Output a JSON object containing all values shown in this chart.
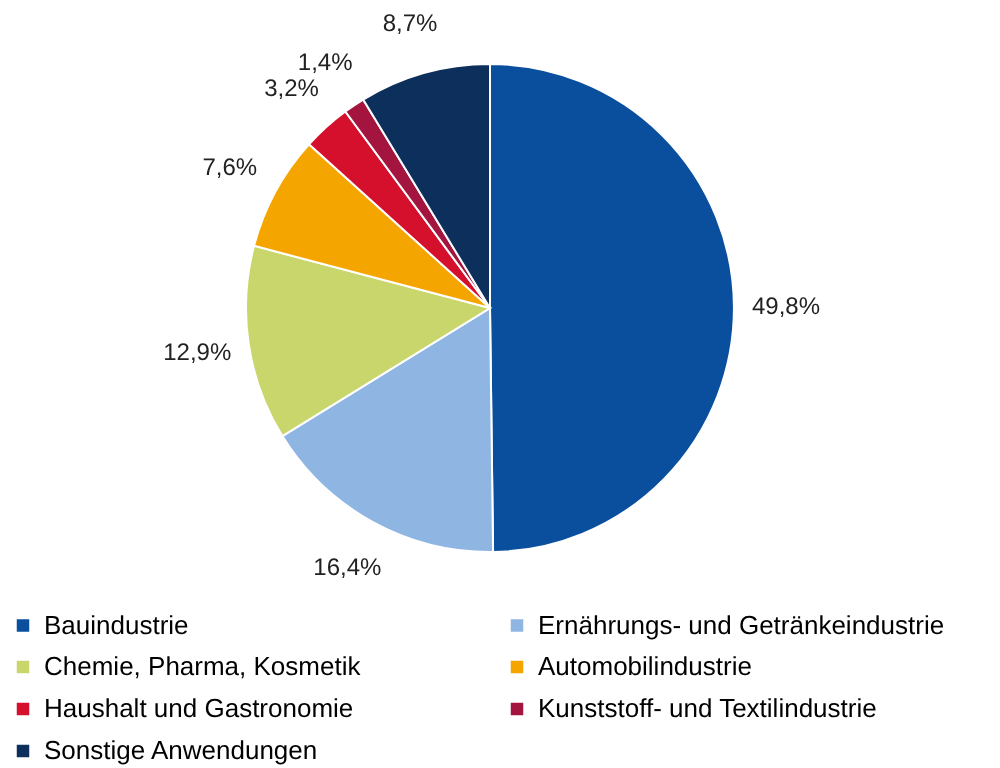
{
  "chart_data": {
    "type": "pie",
    "categories": [
      "Bauindustrie",
      "Ernährungs- und Getränkeindustrie",
      "Chemie, Pharma, Kosmetik",
      "Automobilindustrie",
      "Haushalt und Gastronomie",
      "Kunststoff- und Textilindustrie",
      "Sonstige Anwendungen"
    ],
    "values": [
      49.8,
      16.4,
      12.9,
      7.6,
      3.2,
      1.4,
      8.7
    ],
    "colors": [
      "#0a4f9e",
      "#8fb6e3",
      "#c8d66b",
      "#f5a500",
      "#d4102c",
      "#a3153f",
      "#0d2f5c"
    ],
    "value_labels": [
      "49,8%",
      "16,4%",
      "12,9%",
      "7,6%",
      "3,2%",
      "1,4%",
      "8,7%"
    ],
    "legend": "bottom"
  }
}
